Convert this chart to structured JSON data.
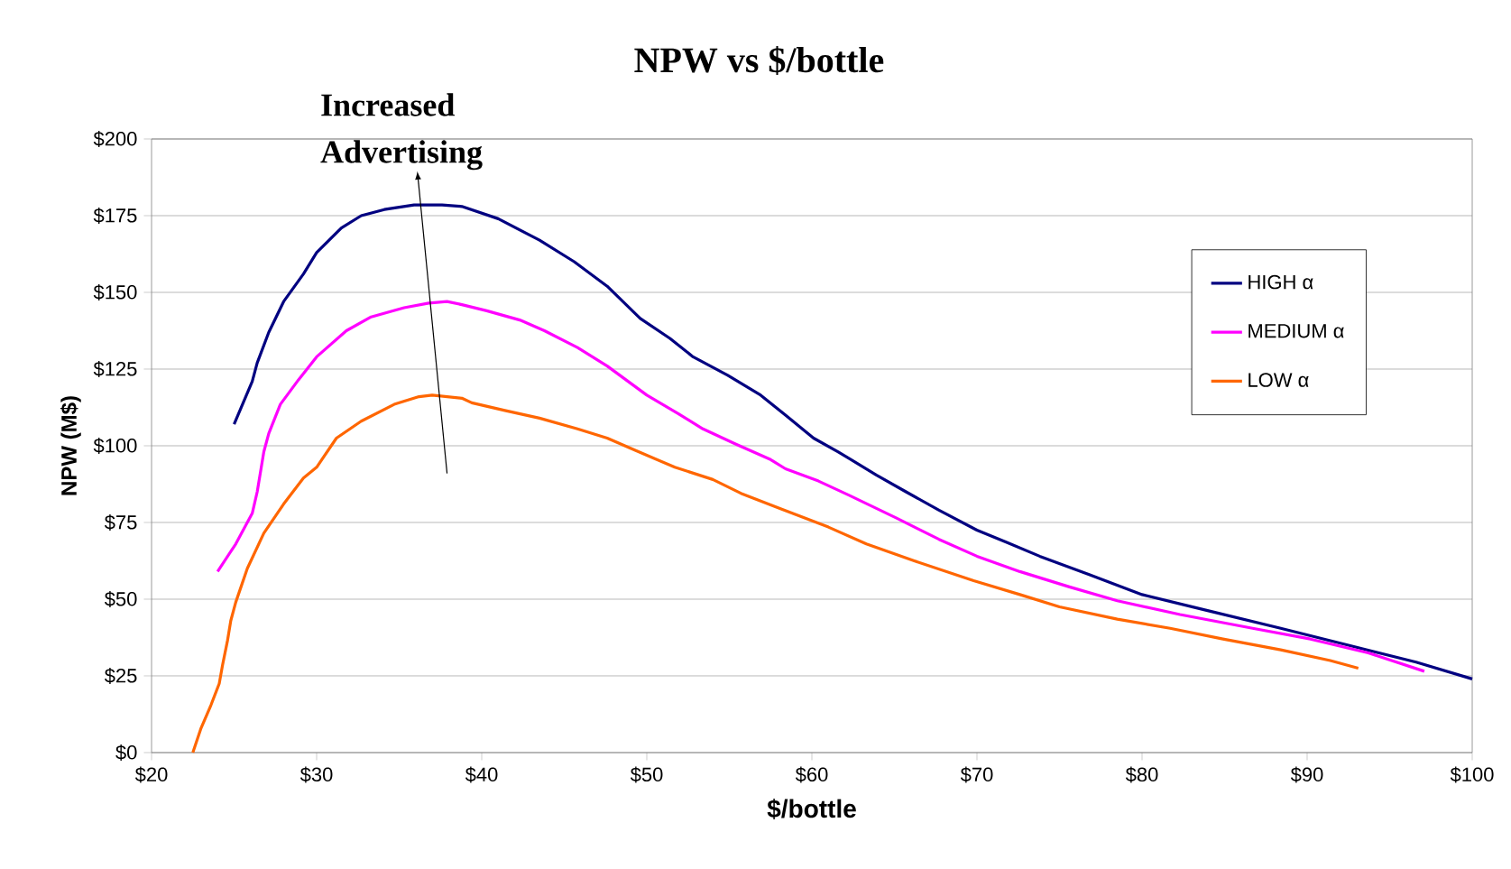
{
  "chart_data": {
    "type": "line",
    "title": "NPW vs $/bottle",
    "xlabel": "$/bottle",
    "ylabel": "NPW (M$)",
    "annotations": [
      "Increased Advertising"
    ],
    "xlim": [
      20,
      100
    ],
    "ylim": [
      0,
      200
    ],
    "xticks": [
      {
        "value": 20,
        "label": "$20"
      },
      {
        "value": 30,
        "label": "$30"
      },
      {
        "value": 40,
        "label": "$40"
      },
      {
        "value": 50,
        "label": "$50"
      },
      {
        "value": 60,
        "label": "$60"
      },
      {
        "value": 70,
        "label": "$70"
      },
      {
        "value": 80,
        "label": "$80"
      },
      {
        "value": 90,
        "label": "$90"
      },
      {
        "value": 100,
        "label": "$100"
      }
    ],
    "yticks": [
      {
        "value": 0,
        "label": "$0"
      },
      {
        "value": 25,
        "label": "$25"
      },
      {
        "value": 50,
        "label": "$50"
      },
      {
        "value": 75,
        "label": "$75"
      },
      {
        "value": 100,
        "label": "$100"
      },
      {
        "value": 125,
        "label": "$125"
      },
      {
        "value": 150,
        "label": "$150"
      },
      {
        "value": 175,
        "label": "$175"
      },
      {
        "value": 200,
        "label": "$200"
      }
    ],
    "grid": "y",
    "legend": "right",
    "marker": "none",
    "line_style": "solid",
    "series": [
      {
        "name": "HIGH α",
        "color": "#000080",
        "x": [
          25,
          26.1,
          26.4,
          27.1,
          28,
          29.2,
          30,
          31.5,
          32.7,
          34.1,
          35.9,
          37.6,
          38.8,
          41,
          43.5,
          45.6,
          47.6,
          49.6,
          51.4,
          52.8,
          54.9,
          56.9,
          58.4,
          60.1,
          61.6,
          63.9,
          65.7,
          67.7,
          70,
          71.8,
          73.8,
          76.8,
          80,
          83.8,
          88.4,
          92.5,
          96.6,
          100
        ],
        "values": [
          107,
          121,
          127,
          137,
          147,
          156,
          163,
          171,
          175,
          177,
          178.5,
          178.5,
          178,
          174,
          167,
          160,
          152,
          141.5,
          135,
          129,
          123,
          116.5,
          110,
          102.5,
          98,
          90.5,
          85,
          79,
          72.5,
          68.5,
          64,
          58,
          51.5,
          46.5,
          40.5,
          35,
          29.5,
          24
        ]
      },
      {
        "name": "MEDIUM α",
        "color": "#FF00FF",
        "x": [
          24,
          25.1,
          26.1,
          26.4,
          26.8,
          27.1,
          27.8,
          28.9,
          30,
          31.8,
          33.3,
          35.3,
          36.8,
          37.9,
          38.8,
          40.3,
          42.3,
          43.8,
          45.8,
          47.6,
          50,
          51.9,
          53.4,
          55.4,
          57.5,
          58.4,
          60.4,
          62.2,
          65.1,
          67.7,
          70,
          72.6,
          75.6,
          78.5,
          82.3,
          86.7,
          90.2,
          93.7,
          97.1
        ],
        "values": [
          59,
          68,
          78,
          85,
          98,
          104,
          113.5,
          121.5,
          129,
          137.5,
          142,
          145,
          146.5,
          147,
          146,
          144,
          141,
          137.5,
          132,
          126,
          116.5,
          110.5,
          105.5,
          100.5,
          95.5,
          92.5,
          88.5,
          84,
          76.5,
          69.5,
          64,
          59,
          54,
          49.5,
          45,
          40.5,
          37,
          32.5,
          26.5
        ]
      },
      {
        "name": "LOW α",
        "color": "#FF6600",
        "x": [
          22.5,
          23,
          23.6,
          24.1,
          24.3,
          24.6,
          24.8,
          25.1,
          25.8,
          26.8,
          28,
          29.2,
          30,
          31.2,
          32.7,
          34.7,
          36.2,
          37,
          38.8,
          39.4,
          41.4,
          43.5,
          45.8,
          47.6,
          49.3,
          51.7,
          54,
          55.7,
          58.1,
          61,
          63.3,
          66.2,
          69.8,
          72.6,
          75,
          78.5,
          81.7,
          84.9,
          88.4,
          91.4,
          93.1
        ],
        "values": [
          0,
          8,
          15.5,
          22.5,
          28.5,
          36.5,
          43,
          49,
          60,
          71.5,
          81,
          89.5,
          93,
          102.5,
          108,
          113.5,
          116,
          116.5,
          115.5,
          114,
          111.5,
          109,
          105.5,
          102.5,
          98.5,
          93,
          89,
          84.5,
          79.5,
          73.5,
          68,
          62.5,
          56,
          51.5,
          47.5,
          43.5,
          40.5,
          37,
          33.5,
          30,
          27.5
        ]
      }
    ]
  }
}
